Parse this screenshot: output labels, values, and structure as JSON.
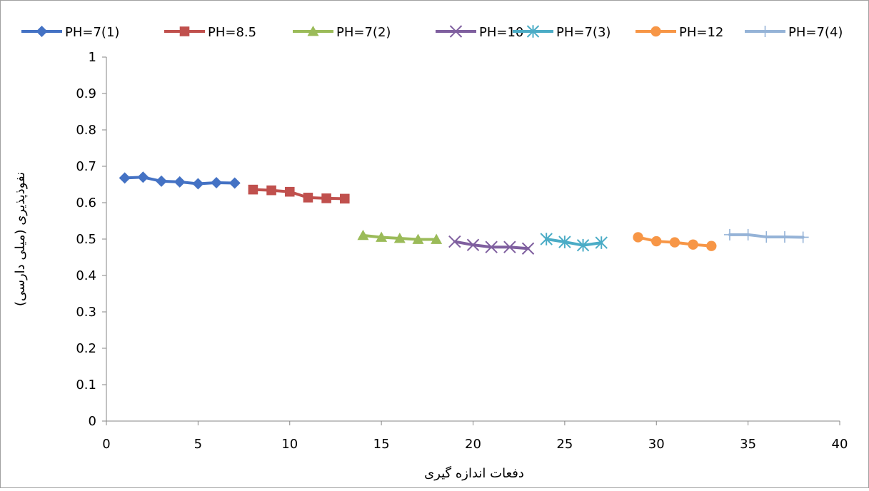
{
  "chart_data": {
    "type": "line",
    "title": "",
    "xlabel": "دفعات اندازه گیری",
    "ylabel": "نفوذپذیری (میلی دارسی)",
    "xlim": [
      0,
      40
    ],
    "ylim": [
      0,
      1
    ],
    "x_ticks": [
      0,
      5,
      10,
      15,
      20,
      25,
      30,
      35,
      40
    ],
    "y_ticks": [
      0,
      0.1,
      0.2,
      0.3,
      0.4,
      0.5,
      0.6,
      0.7,
      0.8,
      0.9,
      1
    ],
    "grid": false,
    "legend_position": "top",
    "series": [
      {
        "name": "PH=7(1)",
        "color": "#4472C4",
        "marker": "diamond",
        "x": [
          1,
          2,
          3,
          4,
          5,
          6,
          7
        ],
        "y": [
          0.668,
          0.67,
          0.659,
          0.657,
          0.652,
          0.655,
          0.654
        ]
      },
      {
        "name": "PH=8.5",
        "color": "#C0504D",
        "marker": "square",
        "x": [
          8,
          9,
          10,
          11,
          12,
          13
        ],
        "y": [
          0.636,
          0.634,
          0.63,
          0.614,
          0.612,
          0.611
        ]
      },
      {
        "name": "PH=7(2)",
        "color": "#9BBB59",
        "marker": "triangle",
        "x": [
          14,
          15,
          16,
          17,
          18
        ],
        "y": [
          0.51,
          0.505,
          0.502,
          0.499,
          0.499
        ]
      },
      {
        "name": "PH=10",
        "color": "#7F5F9F",
        "marker": "x",
        "x": [
          19,
          20,
          21,
          22,
          23
        ],
        "y": [
          0.493,
          0.484,
          0.478,
          0.478,
          0.474
        ]
      },
      {
        "name": "PH=7(3)",
        "color": "#4BACC6",
        "marker": "star",
        "x": [
          24,
          25,
          26,
          27
        ],
        "y": [
          0.5,
          0.492,
          0.483,
          0.49
        ]
      },
      {
        "name": "PH=12",
        "color": "#F79646",
        "marker": "circle",
        "x": [
          29,
          30,
          31,
          32,
          33
        ],
        "y": [
          0.505,
          0.494,
          0.491,
          0.485,
          0.481
        ]
      },
      {
        "name": "PH=7(4)",
        "color": "#95B3D7",
        "marker": "plus",
        "x": [
          34,
          35,
          36,
          37,
          38
        ],
        "y": [
          0.512,
          0.512,
          0.506,
          0.506,
          0.505
        ]
      }
    ]
  }
}
